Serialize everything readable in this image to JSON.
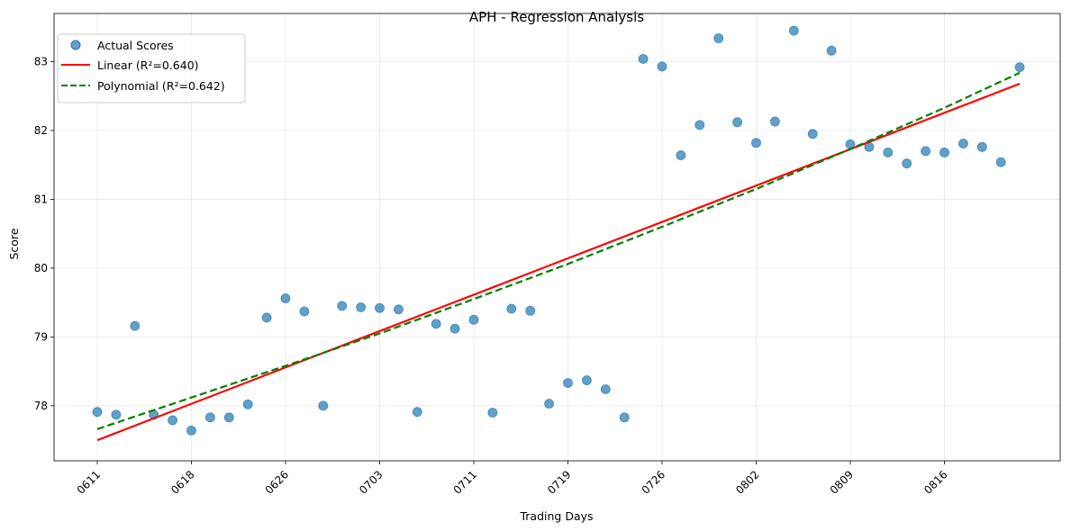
{
  "chart_data": {
    "type": "scatter",
    "title": "APH - Regression Analysis",
    "xlabel": "Trading Days",
    "ylabel": "Score",
    "ylim": [
      77.2,
      83.7
    ],
    "yticks": [
      78,
      79,
      80,
      81,
      82,
      83
    ],
    "xticks": [
      {
        "index": 0,
        "label": "0611"
      },
      {
        "index": 5,
        "label": "0618"
      },
      {
        "index": 10,
        "label": "0626"
      },
      {
        "index": 15,
        "label": "0703"
      },
      {
        "index": 20,
        "label": "0711"
      },
      {
        "index": 25,
        "label": "0719"
      },
      {
        "index": 30,
        "label": "0726"
      },
      {
        "index": 35,
        "label": "0802"
      },
      {
        "index": 40,
        "label": "0809"
      },
      {
        "index": 45,
        "label": "0816"
      }
    ],
    "grid": true,
    "legend_position": "top-left",
    "series": [
      {
        "name": "Actual Scores",
        "kind": "scatter",
        "color": "#1f77b4",
        "x": [
          0,
          1,
          2,
          3,
          4,
          5,
          6,
          7,
          8,
          9,
          10,
          11,
          12,
          13,
          14,
          15,
          16,
          17,
          18,
          19,
          20,
          21,
          22,
          23,
          24,
          25,
          26,
          27,
          28,
          29,
          30,
          31,
          32,
          33,
          34,
          35,
          36,
          37,
          38,
          39,
          40,
          41,
          42,
          43,
          44,
          45,
          46,
          47,
          48,
          49
        ],
        "y": [
          77.91,
          77.87,
          79.16,
          77.87,
          77.79,
          77.64,
          77.83,
          77.83,
          78.02,
          79.28,
          79.56,
          79.37,
          78.0,
          79.45,
          79.43,
          79.42,
          79.4,
          77.91,
          79.19,
          79.12,
          79.25,
          77.9,
          79.41,
          79.38,
          78.03,
          78.33,
          78.37,
          78.24,
          77.83,
          83.04,
          82.93,
          81.64,
          82.08,
          83.34,
          82.12,
          81.82,
          82.13,
          83.45,
          81.95,
          83.16,
          81.8,
          81.76,
          81.68,
          81.52,
          81.7,
          81.68,
          81.81,
          81.76,
          81.54,
          82.92
        ]
      },
      {
        "name": "Linear (R²=0.640)",
        "kind": "line",
        "color": "#ff0000",
        "style": "solid",
        "x": [
          0,
          49
        ],
        "y": [
          77.5,
          82.68
        ]
      },
      {
        "name": "Polynomial (R²=0.642)",
        "kind": "line",
        "color": "#008000",
        "style": "dashed",
        "x": [
          0,
          5,
          10,
          15,
          20,
          25,
          30,
          35,
          40,
          45,
          49
        ],
        "y": [
          77.66,
          78.12,
          78.58,
          79.05,
          79.55,
          80.06,
          80.6,
          81.15,
          81.73,
          82.33,
          82.84
        ]
      }
    ]
  }
}
